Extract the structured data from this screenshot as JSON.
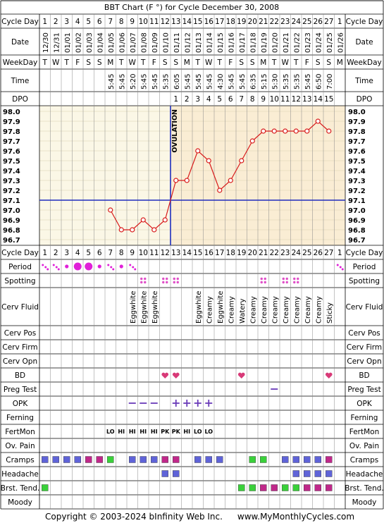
{
  "title": "BBT Chart (F °) for Cycle December 30, 2008",
  "footer": {
    "copyright": "Copyright © 2003-2024 bInfinity Web Inc.",
    "site": "www.MyMonthlyCycles.com"
  },
  "row_labels": {
    "cycle_day": "Cycle Day",
    "date": "Date",
    "weekday": "WeekDay",
    "time": "Time",
    "dpo": "DPO",
    "period": "Period",
    "spotting": "Spotting",
    "cerv_fluid": "Cerv Fluid",
    "cerv_pos": "Cerv Pos",
    "cerv_firm": "Cerv Firm",
    "cerv_opn": "Cerv Opn",
    "bd": "BD",
    "preg_test": "Preg Test",
    "opk": "OPK",
    "ferning": "Ferning",
    "fertmon": "FertMon",
    "ov_pain": "Ov. Pain",
    "cramps": "Cramps",
    "headache": "Headache",
    "brst_tend": "Brst. Tend.",
    "moody": "Moody"
  },
  "ovulation_label": "OVULATION",
  "colors": {
    "grid": "#000000",
    "pre_ov_bg": "#fbf7e6",
    "post_ov_bg": "#faedd4",
    "temp_line": "#d81b1b",
    "coverline": "#1f2dbd",
    "ovulation_line": "#1f2dbd",
    "period": "#e020d8",
    "spotting": "#e050c8",
    "heart": "#d83a78",
    "opk": "#6a3bb8",
    "fertmon": "#0a7d0a",
    "cramps_a": "#5f63d8",
    "cramps_b": "#c0288a",
    "green_box": "#3ad03a"
  },
  "chart_data": {
    "type": "line",
    "title": "BBT Chart (F °) for Cycle December 30, 2008",
    "cycle_days": [
      "1",
      "2",
      "3",
      "4",
      "5",
      "6",
      "7",
      "8",
      "9",
      "10",
      "11",
      "12",
      "13",
      "14",
      "15",
      "16",
      "17",
      "18",
      "19",
      "20",
      "21",
      "22",
      "23",
      "24",
      "25",
      "26",
      "27",
      "1"
    ],
    "dates": [
      "12/30",
      "12/31",
      "01/01",
      "01/02",
      "01/03",
      "01/04",
      "01/05",
      "01/06",
      "01/07",
      "01/08",
      "01/09",
      "01/10",
      "01/11",
      "01/12",
      "01/13",
      "01/14",
      "01/15",
      "01/16",
      "01/17",
      "01/18",
      "01/19",
      "01/20",
      "01/21",
      "01/22",
      "01/23",
      "01/24",
      "01/25",
      "01/26"
    ],
    "weekdays": [
      "T",
      "W",
      "T",
      "F",
      "S",
      "S",
      "M",
      "T",
      "W",
      "T",
      "F",
      "S",
      "S",
      "M",
      "T",
      "W",
      "T",
      "F",
      "S",
      "S",
      "M",
      "T",
      "W",
      "T",
      "F",
      "S",
      "S",
      "M"
    ],
    "times": [
      "",
      "",
      "",
      "",
      "",
      "",
      "5:45",
      "5:45",
      "5:20",
      "5:45",
      "5:45",
      "5:35",
      "6:05",
      "5:45",
      "5:45",
      "5:45",
      "4:30",
      "5:45",
      "5:45",
      "6:35",
      "5:15",
      "5:30",
      "5:35",
      "5:35",
      "5:45",
      "6:50",
      "7:00",
      ""
    ],
    "dpo": [
      "",
      "",
      "",
      "",
      "",
      "",
      "",
      "",
      "",
      "",
      "",
      "",
      "1",
      "2",
      "3",
      "4",
      "5",
      "6",
      "7",
      "8",
      "9",
      "10",
      "11",
      "12",
      "13",
      "14",
      "15",
      ""
    ],
    "y_ticks": [
      "98.0",
      "97.9",
      "97.8",
      "97.7",
      "97.6",
      "97.5",
      "97.4",
      "97.3",
      "97.2",
      "97.1",
      "97.0",
      "96.9",
      "96.8",
      "96.7"
    ],
    "ylim": [
      96.7,
      98.0
    ],
    "temps": [
      null,
      null,
      null,
      null,
      null,
      null,
      97.0,
      96.8,
      96.8,
      96.9,
      96.8,
      96.9,
      97.3,
      97.3,
      97.6,
      97.5,
      97.2,
      97.3,
      97.5,
      97.7,
      97.8,
      97.8,
      97.8,
      97.8,
      97.8,
      97.9,
      97.8,
      null
    ],
    "coverline": 97.1,
    "ovulation_day_index": 11
  },
  "rows": {
    "period": [
      "light",
      "light",
      "medium",
      "heavy",
      "heavy",
      "medium",
      "light",
      "medium",
      "light",
      "",
      "",
      "",
      "",
      "",
      "",
      "",
      "",
      "",
      "",
      "",
      "",
      "",
      "",
      "",
      "",
      "",
      "",
      "light"
    ],
    "spotting": [
      0,
      0,
      0,
      0,
      0,
      0,
      0,
      0,
      0,
      1,
      0,
      1,
      1,
      0,
      0,
      0,
      0,
      0,
      0,
      0,
      1,
      0,
      1,
      1,
      0,
      0,
      0,
      0
    ],
    "cerv_fluid": [
      "",
      "",
      "",
      "",
      "",
      "",
      "",
      "",
      "Eggwhite",
      "Eggwhite",
      "Eggwhite",
      "",
      "",
      "",
      "Eggwhite",
      "Creamy",
      "Eggwhite",
      "Creamy",
      "Watery",
      "Creamy",
      "Creamy",
      "Creamy",
      "Creamy",
      "Creamy",
      "Creamy",
      "Creamy",
      "Sticky",
      ""
    ],
    "bd": [
      0,
      0,
      0,
      0,
      0,
      0,
      0,
      0,
      0,
      0,
      0,
      1,
      1,
      0,
      0,
      0,
      0,
      0,
      1,
      0,
      0,
      0,
      0,
      0,
      0,
      0,
      1,
      0
    ],
    "preg_test": [
      0,
      0,
      0,
      0,
      0,
      0,
      0,
      0,
      0,
      0,
      0,
      0,
      0,
      0,
      0,
      0,
      0,
      0,
      0,
      0,
      0,
      1,
      0,
      0,
      0,
      0,
      0,
      0
    ],
    "opk": [
      "",
      "",
      "",
      "",
      "",
      "",
      "",
      "",
      "neg",
      "neg",
      "neg",
      "",
      "pos",
      "pos",
      "pos",
      "pos",
      "",
      "",
      "",
      "",
      "",
      "",
      "",
      "",
      "",
      "",
      "",
      ""
    ],
    "fertmon": [
      "",
      "",
      "",
      "",
      "",
      "",
      "LO",
      "HI",
      "HI",
      "HI",
      "HI",
      "PK",
      "PK",
      "HI",
      "LO",
      "LO",
      "",
      "",
      "",
      "",
      "",
      "",
      "",
      "",
      "",
      "",
      "",
      ""
    ],
    "cramps": [
      "a",
      "a",
      "a",
      "a",
      "b",
      "b",
      "g",
      "",
      "a",
      "a",
      "a",
      "b",
      "b",
      "",
      "a",
      "a",
      "a",
      "",
      "",
      "g",
      "g",
      "",
      "a",
      "a",
      "a",
      "a",
      "b",
      ""
    ],
    "headache": [
      "",
      "",
      "",
      "",
      "",
      "",
      "",
      "",
      "",
      "",
      "",
      "a",
      "a",
      "",
      "",
      "",
      "",
      "",
      "",
      "",
      "",
      "",
      "",
      "a",
      "a",
      "a",
      "a",
      ""
    ],
    "brst_tend": [
      "g",
      "",
      "",
      "",
      "",
      "",
      "",
      "",
      "",
      "",
      "",
      "",
      "",
      "",
      "",
      "",
      "",
      "",
      "g",
      "g",
      "b",
      "b",
      "g",
      "g",
      "b",
      "b",
      "b",
      ""
    ]
  }
}
